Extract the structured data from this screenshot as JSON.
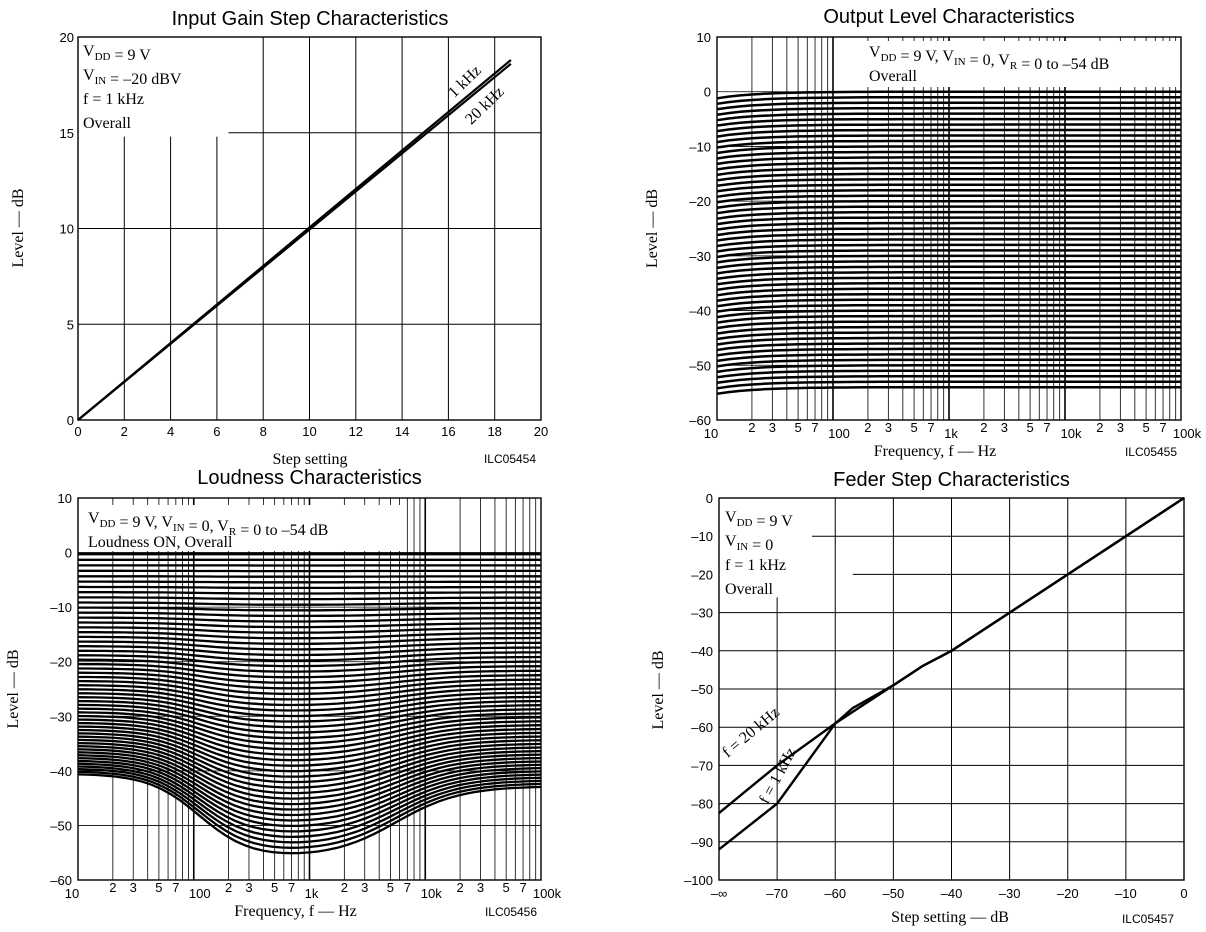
{
  "chart_data": [
    {
      "type": "line",
      "title": "Input Gain Step Characteristics",
      "xlabel": "Step setting",
      "ylabel": "Level — dB",
      "xlim": [
        0,
        20
      ],
      "ylim": [
        0,
        20
      ],
      "x_ticks": [
        "0",
        "2",
        "4",
        "6",
        "8",
        "10",
        "12",
        "14",
        "16",
        "18",
        "20"
      ],
      "y_ticks": [
        "0",
        "5",
        "10",
        "15",
        "20"
      ],
      "grid": true,
      "code": "ILC05454",
      "notes": [
        "VDD = 9 V",
        "VIN = –20 dBV",
        "f = 1 kHz",
        "Overall"
      ],
      "series": [
        {
          "name": "1 kHz",
          "points": [
            [
              0,
              0
            ],
            [
              18.7,
              18.8
            ]
          ]
        },
        {
          "name": "20 kHz",
          "points": [
            [
              0,
              0
            ],
            [
              18.7,
              18.6
            ]
          ]
        }
      ]
    },
    {
      "type": "line",
      "title": "Output Level Characteristics",
      "xlabel": "Frequency, f — Hz",
      "ylabel": "Level — dB",
      "x_scale": "log",
      "xlim": [
        10,
        100000
      ],
      "ylim": [
        -60,
        10
      ],
      "y_ticks": [
        "10",
        "0",
        "–10",
        "–20",
        "–30",
        "–40",
        "–50",
        "–60"
      ],
      "x_ticks": [
        "10",
        "2",
        "3",
        "5",
        "7",
        "100",
        "2",
        "3",
        "5",
        "7",
        "1k",
        "2",
        "3",
        "5",
        "7",
        "10k",
        "2",
        "3",
        "5",
        "7",
        "100k"
      ],
      "grid": true,
      "code": "ILC05455",
      "notes": [
        "VDD = 9 V, VIN = 0, VR = 0 to –54 dB",
        "Overall"
      ],
      "family": {
        "from_db": 0,
        "to_db": -54,
        "step_db": 1,
        "low_frequency_droop_db": 1.2
      }
    },
    {
      "type": "line",
      "title": "Loudness Characteristics",
      "xlabel": "Frequency, f — Hz",
      "ylabel": "Level — dB",
      "x_scale": "log",
      "xlim": [
        10,
        100000
      ],
      "ylim": [
        -60,
        10
      ],
      "y_ticks": [
        "10",
        "0",
        "–10",
        "–20",
        "–30",
        "–40",
        "–50",
        "–60"
      ],
      "x_ticks": [
        "10",
        "2",
        "3",
        "5",
        "7",
        "100",
        "2",
        "3",
        "5",
        "7",
        "1k",
        "2",
        "3",
        "5",
        "7",
        "10k",
        "2",
        "3",
        "5",
        "7",
        "100k"
      ],
      "grid": true,
      "code": "ILC05456",
      "notes": [
        "VDD = 9 V, VIN = 0, VR = 0 to –54 dB",
        "Loudness ON, Overall"
      ],
      "family_endpoints": [
        {
          "vr_db": 0,
          "at_10hz": -0.5,
          "at_1khz": -0.3,
          "at_100khz": -0.4
        },
        {
          "vr_db": -54,
          "at_10hz": -40.5,
          "at_1khz": -56,
          "at_100khz": -42.8
        }
      ]
    },
    {
      "type": "line",
      "title": "Feder Step Characteristics",
      "xlabel": "Step setting — dB",
      "ylabel": "Level — dB",
      "xlim": [
        -80,
        0
      ],
      "ylim": [
        -100,
        0
      ],
      "x_ticks": [
        "–∞",
        "–70",
        "–60",
        "–50",
        "–40",
        "–30",
        "–20",
        "–10",
        "0"
      ],
      "y_ticks": [
        "0",
        "–10",
        "–20",
        "–30",
        "–40",
        "–50",
        "–60",
        "–70",
        "–80",
        "–90",
        "–100"
      ],
      "grid": true,
      "code": "ILC05457",
      "notes": [
        "VDD = 9 V",
        "VIN = 0",
        "f = 1 kHz",
        "Overall"
      ],
      "series": [
        {
          "name": "f = 1 kHz",
          "points": [
            [
              -80,
              -92
            ],
            [
              -70,
              -80
            ],
            [
              -60,
              -59
            ],
            [
              -57,
              -55
            ],
            [
              -50,
              -49
            ],
            [
              -45,
              -44
            ],
            [
              -40,
              -40
            ],
            [
              0,
              0
            ]
          ]
        },
        {
          "name": "f = 20 kHz",
          "points": [
            [
              -80,
              -82.5
            ],
            [
              -70,
              -70
            ],
            [
              -60,
              -59
            ],
            [
              -57,
              -56
            ],
            [
              -50,
              -49
            ],
            [
              -45,
              -44
            ],
            [
              -40,
              -40
            ],
            [
              0,
              0
            ]
          ]
        }
      ]
    }
  ]
}
